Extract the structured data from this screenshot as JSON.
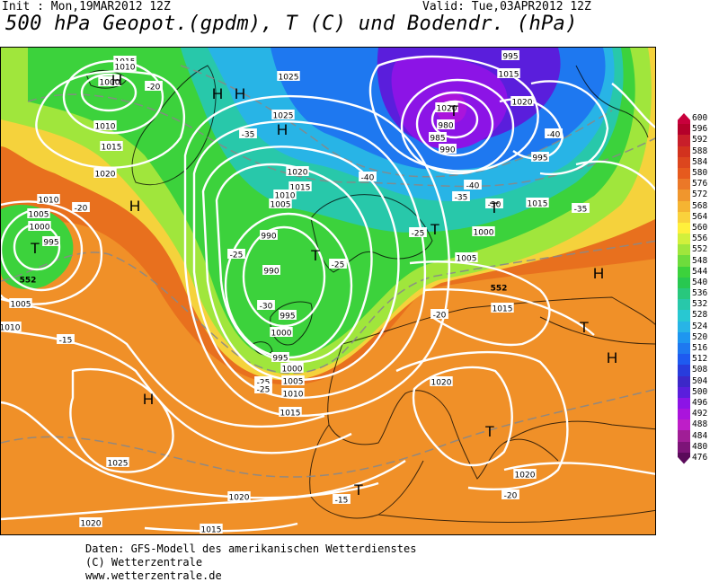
{
  "header": {
    "init": "Init : Mon,19MAR2012 12Z",
    "valid": "Valid: Tue,03APR2012 12Z",
    "title": "500 hPa Geopot.(gpdm), T (C) und Bodendr. (hPa)"
  },
  "footer": {
    "line1": "Daten: GFS-Modell des amerikanischen Wetterdienstes",
    "line2": "(C) Wetterzentrale",
    "line3": "www.wetterzentrale.de"
  },
  "colorbar": {
    "levels": [
      "600",
      "596",
      "592",
      "588",
      "584",
      "580",
      "576",
      "572",
      "568",
      "564",
      "560",
      "556",
      "552",
      "548",
      "544",
      "540",
      "536",
      "532",
      "528",
      "524",
      "520",
      "516",
      "512",
      "508",
      "504",
      "500",
      "496",
      "492",
      "488",
      "484",
      "480",
      "476"
    ],
    "colors": [
      "#c8003c",
      "#b4002a",
      "#c81e2a",
      "#d2321e",
      "#dc461e",
      "#e65a1e",
      "#eb7828",
      "#f0962d",
      "#f5b432",
      "#fad23c",
      "#fff03c",
      "#d2f03c",
      "#a0e63c",
      "#6edc3c",
      "#3cd23c",
      "#28c850",
      "#28c87d",
      "#28c8aa",
      "#28c8d2",
      "#28b4e6",
      "#1e96f0",
      "#1e78f0",
      "#1e5af0",
      "#283cdc",
      "#3c28c8",
      "#5a1edc",
      "#8c14e6",
      "#aa14dc",
      "#be1ec8",
      "#a01e96",
      "#7d1478",
      "#5a0a5a"
    ]
  },
  "map": {
    "surface_pressure_labels": [
      "1015",
      "1010",
      "1000",
      "1010",
      "1015",
      "1020",
      "1010",
      "1005",
      "1000",
      "995",
      "1025",
      "1025",
      "1020",
      "1015",
      "1010",
      "1005",
      "990",
      "990",
      "995",
      "1000",
      "995",
      "1000",
      "1005",
      "1010",
      "1015",
      "1025",
      "1020",
      "1020",
      "1015",
      "1010",
      "1005",
      "1015",
      "1020",
      "1020",
      "995",
      "985",
      "990",
      "980",
      "995",
      "1000",
      "1005",
      "1015",
      "1020",
      "1015",
      "1020"
    ],
    "temperature_labels": [
      "-20",
      "-20",
      "-35",
      "-40",
      "-40",
      "-40",
      "-35",
      "-30",
      "-25",
      "-25",
      "-25",
      "-30",
      "-25",
      "-20",
      "-15",
      "-15",
      "-20",
      "-25",
      "-35"
    ],
    "geopot_labels": [
      "552",
      "552"
    ],
    "pressure_centers": [
      {
        "type": "H"
      },
      {
        "type": "H"
      },
      {
        "type": "H"
      },
      {
        "type": "T"
      },
      {
        "type": "H"
      },
      {
        "type": "T"
      },
      {
        "type": "T"
      },
      {
        "type": "H"
      },
      {
        "type": "T"
      },
      {
        "type": "T"
      },
      {
        "type": "H"
      },
      {
        "type": "T"
      },
      {
        "type": "H"
      },
      {
        "type": "H"
      },
      {
        "type": "T"
      },
      {
        "type": "T"
      }
    ]
  }
}
